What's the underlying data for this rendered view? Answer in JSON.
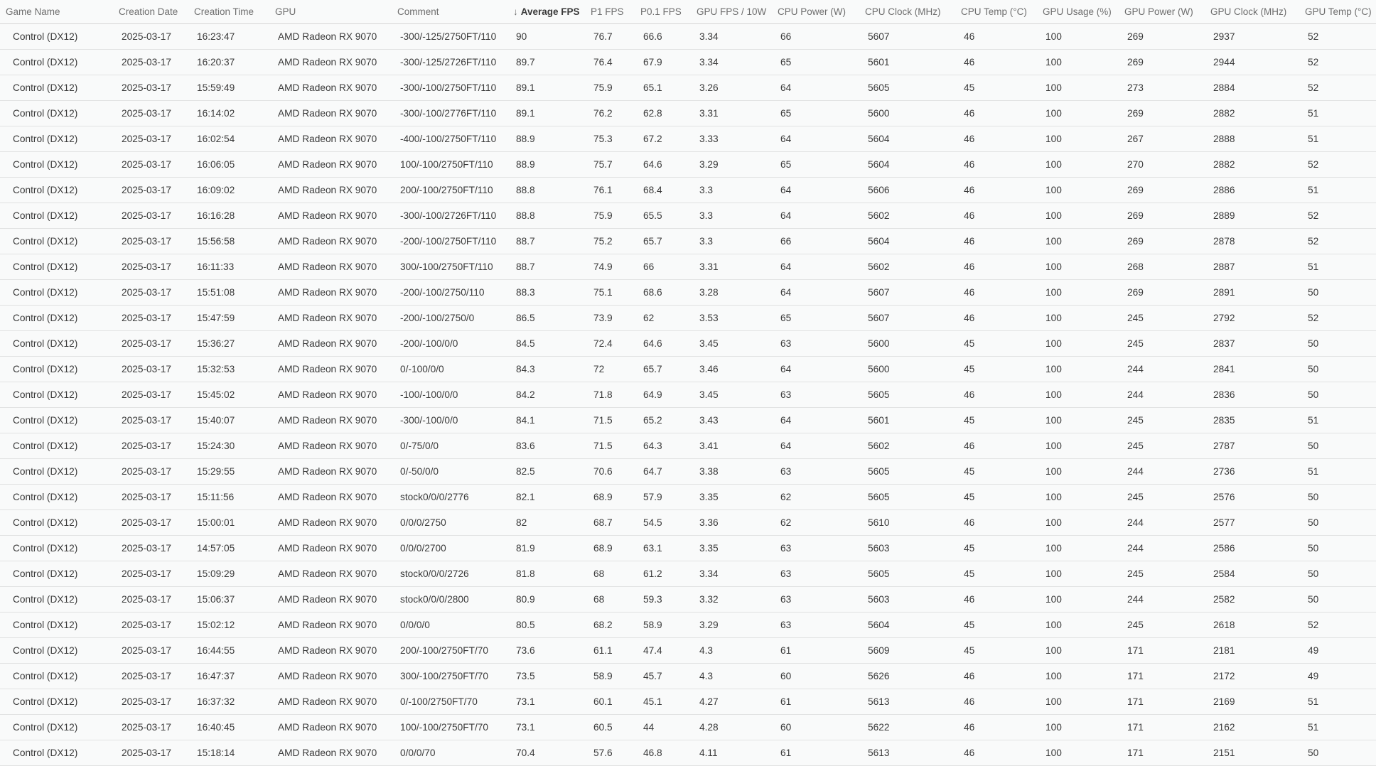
{
  "table": {
    "columns": [
      {
        "key": "game",
        "label": "Game Name"
      },
      {
        "key": "date",
        "label": "Creation Date"
      },
      {
        "key": "time",
        "label": "Creation Time"
      },
      {
        "key": "gpu",
        "label": "GPU"
      },
      {
        "key": "comment",
        "label": "Comment"
      },
      {
        "key": "avg_fps",
        "label": "Average FPS"
      },
      {
        "key": "p1_fps",
        "label": "P1 FPS"
      },
      {
        "key": "p01_fps",
        "label": "P0.1 FPS"
      },
      {
        "key": "gpu_fps_10w",
        "label": "GPU FPS / 10W"
      },
      {
        "key": "cpu_power",
        "label": "CPU Power (W)"
      },
      {
        "key": "cpu_clock",
        "label": "CPU Clock (MHz)"
      },
      {
        "key": "cpu_temp",
        "label": "CPU Temp (°C)"
      },
      {
        "key": "gpu_usage",
        "label": "GPU Usage (%)"
      },
      {
        "key": "gpu_power",
        "label": "GPU Power (W)"
      },
      {
        "key": "gpu_clock",
        "label": "GPU Clock (MHz)"
      },
      {
        "key": "gpu_temp",
        "label": "GPU Temp (°C)"
      }
    ],
    "sort": {
      "column": "avg_fps",
      "direction": "descending",
      "icon": "↓"
    },
    "rows": [
      {
        "game": "Control (DX12)",
        "date": "2025-03-17",
        "time": "16:23:47",
        "gpu": "AMD Radeon RX 9070",
        "comment": "-300/-125/2750FT/110",
        "avg_fps": "90",
        "p1_fps": "76.7",
        "p01_fps": "66.6",
        "gpu_fps_10w": "3.34",
        "cpu_power": "66",
        "cpu_clock": "5607",
        "cpu_temp": "46",
        "gpu_usage": "100",
        "gpu_power": "269",
        "gpu_clock": "2937",
        "gpu_temp": "52"
      },
      {
        "game": "Control (DX12)",
        "date": "2025-03-17",
        "time": "16:20:37",
        "gpu": "AMD Radeon RX 9070",
        "comment": "-300/-125/2726FT/110",
        "avg_fps": "89.7",
        "p1_fps": "76.4",
        "p01_fps": "67.9",
        "gpu_fps_10w": "3.34",
        "cpu_power": "65",
        "cpu_clock": "5601",
        "cpu_temp": "46",
        "gpu_usage": "100",
        "gpu_power": "269",
        "gpu_clock": "2944",
        "gpu_temp": "52"
      },
      {
        "game": "Control (DX12)",
        "date": "2025-03-17",
        "time": "15:59:49",
        "gpu": "AMD Radeon RX 9070",
        "comment": "-300/-100/2750FT/110",
        "avg_fps": "89.1",
        "p1_fps": "75.9",
        "p01_fps": "65.1",
        "gpu_fps_10w": "3.26",
        "cpu_power": "64",
        "cpu_clock": "5605",
        "cpu_temp": "45",
        "gpu_usage": "100",
        "gpu_power": "273",
        "gpu_clock": "2884",
        "gpu_temp": "52"
      },
      {
        "game": "Control (DX12)",
        "date": "2025-03-17",
        "time": "16:14:02",
        "gpu": "AMD Radeon RX 9070",
        "comment": "-300/-100/2776FT/110",
        "avg_fps": "89.1",
        "p1_fps": "76.2",
        "p01_fps": "62.8",
        "gpu_fps_10w": "3.31",
        "cpu_power": "65",
        "cpu_clock": "5600",
        "cpu_temp": "46",
        "gpu_usage": "100",
        "gpu_power": "269",
        "gpu_clock": "2882",
        "gpu_temp": "51"
      },
      {
        "game": "Control (DX12)",
        "date": "2025-03-17",
        "time": "16:02:54",
        "gpu": "AMD Radeon RX 9070",
        "comment": "-400/-100/2750FT/110",
        "avg_fps": "88.9",
        "p1_fps": "75.3",
        "p01_fps": "67.2",
        "gpu_fps_10w": "3.33",
        "cpu_power": "64",
        "cpu_clock": "5604",
        "cpu_temp": "46",
        "gpu_usage": "100",
        "gpu_power": "267",
        "gpu_clock": "2888",
        "gpu_temp": "51"
      },
      {
        "game": "Control (DX12)",
        "date": "2025-03-17",
        "time": "16:06:05",
        "gpu": "AMD Radeon RX 9070",
        "comment": "100/-100/2750FT/110",
        "avg_fps": "88.9",
        "p1_fps": "75.7",
        "p01_fps": "64.6",
        "gpu_fps_10w": "3.29",
        "cpu_power": "65",
        "cpu_clock": "5604",
        "cpu_temp": "46",
        "gpu_usage": "100",
        "gpu_power": "270",
        "gpu_clock": "2882",
        "gpu_temp": "52"
      },
      {
        "game": "Control (DX12)",
        "date": "2025-03-17",
        "time": "16:09:02",
        "gpu": "AMD Radeon RX 9070",
        "comment": "200/-100/2750FT/110",
        "avg_fps": "88.8",
        "p1_fps": "76.1",
        "p01_fps": "68.4",
        "gpu_fps_10w": "3.3",
        "cpu_power": "64",
        "cpu_clock": "5606",
        "cpu_temp": "46",
        "gpu_usage": "100",
        "gpu_power": "269",
        "gpu_clock": "2886",
        "gpu_temp": "51"
      },
      {
        "game": "Control (DX12)",
        "date": "2025-03-17",
        "time": "16:16:28",
        "gpu": "AMD Radeon RX 9070",
        "comment": "-300/-100/2726FT/110",
        "avg_fps": "88.8",
        "p1_fps": "75.9",
        "p01_fps": "65.5",
        "gpu_fps_10w": "3.3",
        "cpu_power": "64",
        "cpu_clock": "5602",
        "cpu_temp": "46",
        "gpu_usage": "100",
        "gpu_power": "269",
        "gpu_clock": "2889",
        "gpu_temp": "52"
      },
      {
        "game": "Control (DX12)",
        "date": "2025-03-17",
        "time": "15:56:58",
        "gpu": "AMD Radeon RX 9070",
        "comment": "-200/-100/2750FT/110",
        "avg_fps": "88.7",
        "p1_fps": "75.2",
        "p01_fps": "65.7",
        "gpu_fps_10w": "3.3",
        "cpu_power": "66",
        "cpu_clock": "5604",
        "cpu_temp": "46",
        "gpu_usage": "100",
        "gpu_power": "269",
        "gpu_clock": "2878",
        "gpu_temp": "52"
      },
      {
        "game": "Control (DX12)",
        "date": "2025-03-17",
        "time": "16:11:33",
        "gpu": "AMD Radeon RX 9070",
        "comment": "300/-100/2750FT/110",
        "avg_fps": "88.7",
        "p1_fps": "74.9",
        "p01_fps": "66",
        "gpu_fps_10w": "3.31",
        "cpu_power": "64",
        "cpu_clock": "5602",
        "cpu_temp": "46",
        "gpu_usage": "100",
        "gpu_power": "268",
        "gpu_clock": "2887",
        "gpu_temp": "51"
      },
      {
        "game": "Control (DX12)",
        "date": "2025-03-17",
        "time": "15:51:08",
        "gpu": "AMD Radeon RX 9070",
        "comment": "-200/-100/2750/110",
        "avg_fps": "88.3",
        "p1_fps": "75.1",
        "p01_fps": "68.6",
        "gpu_fps_10w": "3.28",
        "cpu_power": "64",
        "cpu_clock": "5607",
        "cpu_temp": "46",
        "gpu_usage": "100",
        "gpu_power": "269",
        "gpu_clock": "2891",
        "gpu_temp": "50"
      },
      {
        "game": "Control (DX12)",
        "date": "2025-03-17",
        "time": "15:47:59",
        "gpu": "AMD Radeon RX 9070",
        "comment": "-200/-100/2750/0",
        "avg_fps": "86.5",
        "p1_fps": "73.9",
        "p01_fps": "62",
        "gpu_fps_10w": "3.53",
        "cpu_power": "65",
        "cpu_clock": "5607",
        "cpu_temp": "46",
        "gpu_usage": "100",
        "gpu_power": "245",
        "gpu_clock": "2792",
        "gpu_temp": "52"
      },
      {
        "game": "Control (DX12)",
        "date": "2025-03-17",
        "time": "15:36:27",
        "gpu": "AMD Radeon RX 9070",
        "comment": "-200/-100/0/0",
        "avg_fps": "84.5",
        "p1_fps": "72.4",
        "p01_fps": "64.6",
        "gpu_fps_10w": "3.45",
        "cpu_power": "63",
        "cpu_clock": "5600",
        "cpu_temp": "45",
        "gpu_usage": "100",
        "gpu_power": "245",
        "gpu_clock": "2837",
        "gpu_temp": "50"
      },
      {
        "game": "Control (DX12)",
        "date": "2025-03-17",
        "time": "15:32:53",
        "gpu": "AMD Radeon RX 9070",
        "comment": "0/-100/0/0",
        "avg_fps": "84.3",
        "p1_fps": "72",
        "p01_fps": "65.7",
        "gpu_fps_10w": "3.46",
        "cpu_power": "64",
        "cpu_clock": "5600",
        "cpu_temp": "45",
        "gpu_usage": "100",
        "gpu_power": "244",
        "gpu_clock": "2841",
        "gpu_temp": "50"
      },
      {
        "game": "Control (DX12)",
        "date": "2025-03-17",
        "time": "15:45:02",
        "gpu": "AMD Radeon RX 9070",
        "comment": "-100/-100/0/0",
        "avg_fps": "84.2",
        "p1_fps": "71.8",
        "p01_fps": "64.9",
        "gpu_fps_10w": "3.45",
        "cpu_power": "63",
        "cpu_clock": "5605",
        "cpu_temp": "46",
        "gpu_usage": "100",
        "gpu_power": "244",
        "gpu_clock": "2836",
        "gpu_temp": "50"
      },
      {
        "game": "Control (DX12)",
        "date": "2025-03-17",
        "time": "15:40:07",
        "gpu": "AMD Radeon RX 9070",
        "comment": "-300/-100/0/0",
        "avg_fps": "84.1",
        "p1_fps": "71.5",
        "p01_fps": "65.2",
        "gpu_fps_10w": "3.43",
        "cpu_power": "64",
        "cpu_clock": "5601",
        "cpu_temp": "45",
        "gpu_usage": "100",
        "gpu_power": "245",
        "gpu_clock": "2835",
        "gpu_temp": "51"
      },
      {
        "game": "Control (DX12)",
        "date": "2025-03-17",
        "time": "15:24:30",
        "gpu": "AMD Radeon RX 9070",
        "comment": "0/-75/0/0",
        "avg_fps": "83.6",
        "p1_fps": "71.5",
        "p01_fps": "64.3",
        "gpu_fps_10w": "3.41",
        "cpu_power": "64",
        "cpu_clock": "5602",
        "cpu_temp": "46",
        "gpu_usage": "100",
        "gpu_power": "245",
        "gpu_clock": "2787",
        "gpu_temp": "50"
      },
      {
        "game": "Control (DX12)",
        "date": "2025-03-17",
        "time": "15:29:55",
        "gpu": "AMD Radeon RX 9070",
        "comment": "0/-50/0/0",
        "avg_fps": "82.5",
        "p1_fps": "70.6",
        "p01_fps": "64.7",
        "gpu_fps_10w": "3.38",
        "cpu_power": "63",
        "cpu_clock": "5605",
        "cpu_temp": "45",
        "gpu_usage": "100",
        "gpu_power": "244",
        "gpu_clock": "2736",
        "gpu_temp": "51"
      },
      {
        "game": "Control (DX12)",
        "date": "2025-03-17",
        "time": "15:11:56",
        "gpu": "AMD Radeon RX 9070",
        "comment": "stock0/0/0/2776",
        "avg_fps": "82.1",
        "p1_fps": "68.9",
        "p01_fps": "57.9",
        "gpu_fps_10w": "3.35",
        "cpu_power": "62",
        "cpu_clock": "5605",
        "cpu_temp": "45",
        "gpu_usage": "100",
        "gpu_power": "245",
        "gpu_clock": "2576",
        "gpu_temp": "50"
      },
      {
        "game": "Control (DX12)",
        "date": "2025-03-17",
        "time": "15:00:01",
        "gpu": "AMD Radeon RX 9070",
        "comment": "0/0/0/2750",
        "avg_fps": "82",
        "p1_fps": "68.7",
        "p01_fps": "54.5",
        "gpu_fps_10w": "3.36",
        "cpu_power": "62",
        "cpu_clock": "5610",
        "cpu_temp": "46",
        "gpu_usage": "100",
        "gpu_power": "244",
        "gpu_clock": "2577",
        "gpu_temp": "50"
      },
      {
        "game": "Control (DX12)",
        "date": "2025-03-17",
        "time": "14:57:05",
        "gpu": "AMD Radeon RX 9070",
        "comment": "0/0/0/2700",
        "avg_fps": "81.9",
        "p1_fps": "68.9",
        "p01_fps": "63.1",
        "gpu_fps_10w": "3.35",
        "cpu_power": "63",
        "cpu_clock": "5603",
        "cpu_temp": "45",
        "gpu_usage": "100",
        "gpu_power": "244",
        "gpu_clock": "2586",
        "gpu_temp": "50"
      },
      {
        "game": "Control (DX12)",
        "date": "2025-03-17",
        "time": "15:09:29",
        "gpu": "AMD Radeon RX 9070",
        "comment": "stock0/0/0/2726",
        "avg_fps": "81.8",
        "p1_fps": "68",
        "p01_fps": "61.2",
        "gpu_fps_10w": "3.34",
        "cpu_power": "63",
        "cpu_clock": "5605",
        "cpu_temp": "45",
        "gpu_usage": "100",
        "gpu_power": "245",
        "gpu_clock": "2584",
        "gpu_temp": "50"
      },
      {
        "game": "Control (DX12)",
        "date": "2025-03-17",
        "time": "15:06:37",
        "gpu": "AMD Radeon RX 9070",
        "comment": "stock0/0/0/2800",
        "avg_fps": "80.9",
        "p1_fps": "68",
        "p01_fps": "59.3",
        "gpu_fps_10w": "3.32",
        "cpu_power": "63",
        "cpu_clock": "5603",
        "cpu_temp": "46",
        "gpu_usage": "100",
        "gpu_power": "244",
        "gpu_clock": "2582",
        "gpu_temp": "50"
      },
      {
        "game": "Control (DX12)",
        "date": "2025-03-17",
        "time": "15:02:12",
        "gpu": "AMD Radeon RX 9070",
        "comment": "0/0/0/0",
        "avg_fps": "80.5",
        "p1_fps": "68.2",
        "p01_fps": "58.9",
        "gpu_fps_10w": "3.29",
        "cpu_power": "63",
        "cpu_clock": "5604",
        "cpu_temp": "45",
        "gpu_usage": "100",
        "gpu_power": "245",
        "gpu_clock": "2618",
        "gpu_temp": "52"
      },
      {
        "game": "Control (DX12)",
        "date": "2025-03-17",
        "time": "16:44:55",
        "gpu": "AMD Radeon RX 9070",
        "comment": "200/-100/2750FT/70",
        "avg_fps": "73.6",
        "p1_fps": "61.1",
        "p01_fps": "47.4",
        "gpu_fps_10w": "4.3",
        "cpu_power": "61",
        "cpu_clock": "5609",
        "cpu_temp": "45",
        "gpu_usage": "100",
        "gpu_power": "171",
        "gpu_clock": "2181",
        "gpu_temp": "49"
      },
      {
        "game": "Control (DX12)",
        "date": "2025-03-17",
        "time": "16:47:37",
        "gpu": "AMD Radeon RX 9070",
        "comment": "300/-100/2750FT/70",
        "avg_fps": "73.5",
        "p1_fps": "58.9",
        "p01_fps": "45.7",
        "gpu_fps_10w": "4.3",
        "cpu_power": "60",
        "cpu_clock": "5626",
        "cpu_temp": "46",
        "gpu_usage": "100",
        "gpu_power": "171",
        "gpu_clock": "2172",
        "gpu_temp": "49"
      },
      {
        "game": "Control (DX12)",
        "date": "2025-03-17",
        "time": "16:37:32",
        "gpu": "AMD Radeon RX 9070",
        "comment": "0/-100/2750FT/70",
        "avg_fps": "73.1",
        "p1_fps": "60.1",
        "p01_fps": "45.1",
        "gpu_fps_10w": "4.27",
        "cpu_power": "61",
        "cpu_clock": "5613",
        "cpu_temp": "46",
        "gpu_usage": "100",
        "gpu_power": "171",
        "gpu_clock": "2169",
        "gpu_temp": "51"
      },
      {
        "game": "Control (DX12)",
        "date": "2025-03-17",
        "time": "16:40:45",
        "gpu": "AMD Radeon RX 9070",
        "comment": "100/-100/2750FT/70",
        "avg_fps": "73.1",
        "p1_fps": "60.5",
        "p01_fps": "44",
        "gpu_fps_10w": "4.28",
        "cpu_power": "60",
        "cpu_clock": "5622",
        "cpu_temp": "46",
        "gpu_usage": "100",
        "gpu_power": "171",
        "gpu_clock": "2162",
        "gpu_temp": "51"
      },
      {
        "game": "Control (DX12)",
        "date": "2025-03-17",
        "time": "15:18:14",
        "gpu": "AMD Radeon RX 9070",
        "comment": "0/0/0/70",
        "avg_fps": "70.4",
        "p1_fps": "57.6",
        "p01_fps": "46.8",
        "gpu_fps_10w": "4.11",
        "cpu_power": "61",
        "cpu_clock": "5613",
        "cpu_temp": "46",
        "gpu_usage": "100",
        "gpu_power": "171",
        "gpu_clock": "2151",
        "gpu_temp": "50"
      }
    ]
  },
  "colors": {
    "background": "#f7f8f8",
    "row_background": "#f9fafa",
    "row_border": "#e1e2e2",
    "header_border": "#d6d6d6",
    "header_text": "#6e6e6e",
    "data_text": "#3a3a3a"
  }
}
